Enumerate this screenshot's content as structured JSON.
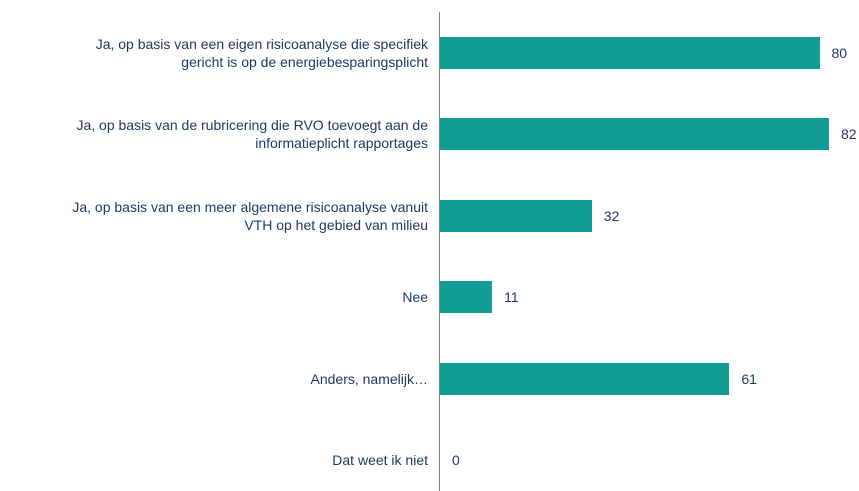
{
  "chart_data": {
    "type": "bar",
    "orientation": "horizontal",
    "categories": [
      "Ja, op basis van een eigen risicoanalyse die specifiek\ngericht is op de energiebesparingsplicht",
      "Ja, op basis van de rubricering die RVO toevoegt aan de\ninformatieplicht rapportages",
      "Ja, op basis van een meer algemene risicoanalyse vanuit\nVTH op het gebied van milieu",
      "Nee",
      "Anders, namelijk…",
      "Dat weet ik niet"
    ],
    "values": [
      80,
      82,
      32,
      11,
      61,
      0
    ],
    "color": "#119d94"
  }
}
